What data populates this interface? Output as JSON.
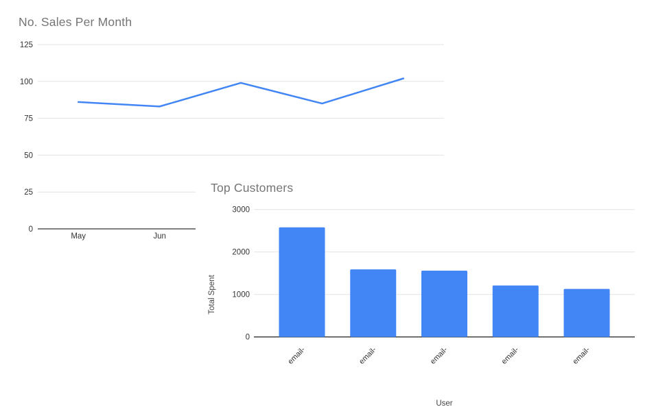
{
  "page": {
    "background": "#ffffff"
  },
  "colors": {
    "series_blue": "#4285f4",
    "title_gray": "#757575",
    "gridline": "#e3e3e3",
    "axis_baseline": "#333333",
    "tick_label": "#333333",
    "axis_title": "#444444"
  },
  "chart_data": [
    {
      "type": "line",
      "title": "No. Sales Per Month",
      "categories": [
        "May",
        "Jun",
        "",
        "",
        ""
      ],
      "values": [
        86,
        83,
        99,
        85,
        102
      ],
      "xlabel": "",
      "ylabel": "",
      "ylim": [
        0,
        125
      ],
      "yticks": [
        0,
        25,
        50,
        75,
        100,
        125
      ],
      "grid": true,
      "legend": "none"
    },
    {
      "type": "bar",
      "title": "Top Customers",
      "categories": [
        "email-",
        "email-",
        "email-",
        "email-",
        "email-"
      ],
      "values": [
        2580,
        1590,
        1560,
        1210,
        1130
      ],
      "xlabel": "User",
      "ylabel": "Total Spent",
      "ylim": [
        0,
        3000
      ],
      "yticks": [
        0,
        1000,
        2000,
        3000
      ],
      "grid": true,
      "legend": "none"
    }
  ]
}
